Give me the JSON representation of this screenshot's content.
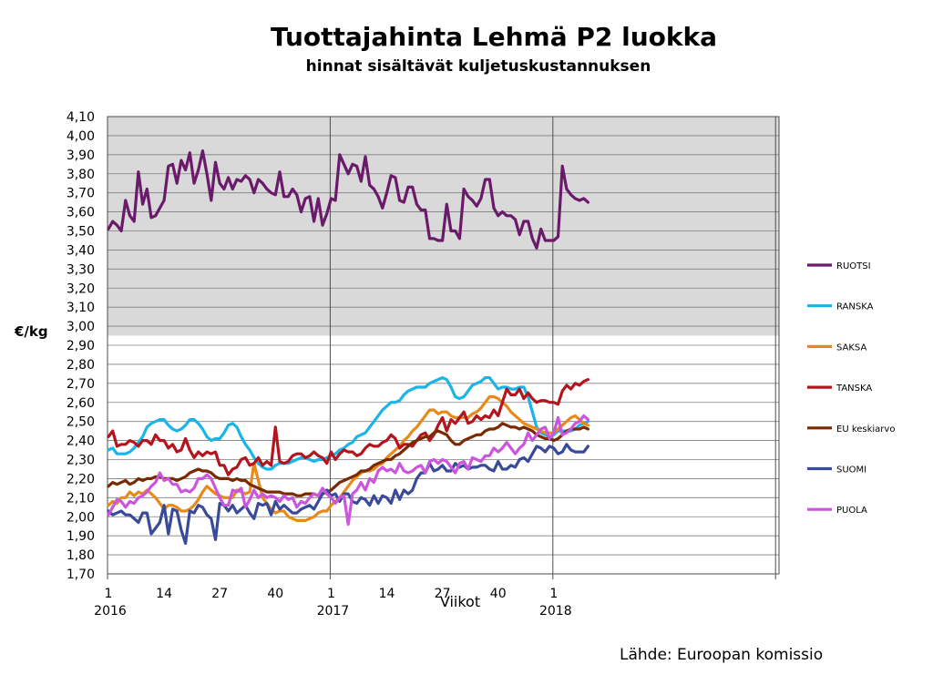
{
  "chart_data": {
    "type": "line",
    "title": "Tuottajahinta Lehmä P2 luokka",
    "subtitle": "hinnat sisältävät kuljetuskustannuksen",
    "ylabel": "€/kg",
    "xlabel": "Viikot",
    "source": "Lähde: Euroopan komissio",
    "ylim": [
      1.7,
      4.1
    ],
    "ytick_step": 0.1,
    "y_tick_labels": [
      "1,70",
      "1,80",
      "1,90",
      "2,00",
      "2,10",
      "2,20",
      "2,30",
      "2,40",
      "2,50",
      "2,60",
      "2,70",
      "2,80",
      "2,90",
      "3,00",
      "3,10",
      "3,20",
      "3,30",
      "3,40",
      "3,50",
      "3,60",
      "3,70",
      "3,80",
      "3,90",
      "4,00",
      "4,10"
    ],
    "x_week_ticks": [
      "1",
      "14",
      "27",
      "40",
      "1",
      "14",
      "27",
      "40",
      "1"
    ],
    "x_year_labels": [
      "2016",
      "2017",
      "2018"
    ],
    "grid": true,
    "legend_position": "right",
    "series": [
      {
        "name": "RUOTSI",
        "color": "#6b1a6b",
        "values": [
          3.51,
          3.55,
          3.53,
          3.5,
          3.66,
          3.58,
          3.55,
          3.81,
          3.64,
          3.72,
          3.57,
          3.58,
          3.62,
          3.66,
          3.84,
          3.85,
          3.75,
          3.87,
          3.82,
          3.91,
          3.75,
          3.82,
          3.92,
          3.8,
          3.66,
          3.86,
          3.75,
          3.72,
          3.78,
          3.72,
          3.77,
          3.76,
          3.79,
          3.77,
          3.7,
          3.77,
          3.75,
          3.72,
          3.7,
          3.69,
          3.81,
          3.68,
          3.68,
          3.72,
          3.69,
          3.6,
          3.67,
          3.68,
          3.55,
          3.67,
          3.53,
          3.59,
          3.67,
          3.66,
          3.9,
          3.85,
          3.8,
          3.85,
          3.84,
          3.76,
          3.89,
          3.74,
          3.72,
          3.68,
          3.62,
          3.7,
          3.79,
          3.78,
          3.66,
          3.65,
          3.73,
          3.73,
          3.64,
          3.61,
          3.61,
          3.46,
          3.46,
          3.45,
          3.45,
          3.64,
          3.5,
          3.5,
          3.46,
          3.72,
          3.68,
          3.66,
          3.63,
          3.67,
          3.77,
          3.77,
          3.62,
          3.58,
          3.6,
          3.58,
          3.58,
          3.56,
          3.48,
          3.55,
          3.55,
          3.46,
          3.41,
          3.51,
          3.45,
          3.45,
          3.45,
          3.47,
          3.84,
          3.72,
          3.69,
          3.67,
          3.66,
          3.67,
          3.65
        ]
      },
      {
        "name": "RANSKA",
        "color": "#1ab4e8",
        "values": [
          2.35,
          2.36,
          2.33,
          2.33,
          2.33,
          2.34,
          2.36,
          2.39,
          2.42,
          2.47,
          2.49,
          2.5,
          2.51,
          2.51,
          2.48,
          2.46,
          2.45,
          2.46,
          2.48,
          2.51,
          2.51,
          2.49,
          2.46,
          2.42,
          2.4,
          2.41,
          2.41,
          2.44,
          2.48,
          2.49,
          2.47,
          2.42,
          2.38,
          2.35,
          2.31,
          2.28,
          2.26,
          2.25,
          2.25,
          2.27,
          2.28,
          2.28,
          2.28,
          2.29,
          2.3,
          2.31,
          2.31,
          2.3,
          2.29,
          2.3,
          2.3,
          2.31,
          2.32,
          2.33,
          2.35,
          2.36,
          2.38,
          2.39,
          2.42,
          2.43,
          2.44,
          2.47,
          2.5,
          2.53,
          2.56,
          2.58,
          2.6,
          2.6,
          2.61,
          2.64,
          2.66,
          2.67,
          2.68,
          2.68,
          2.68,
          2.7,
          2.71,
          2.72,
          2.73,
          2.72,
          2.68,
          2.63,
          2.62,
          2.63,
          2.66,
          2.69,
          2.7,
          2.71,
          2.73,
          2.73,
          2.7,
          2.67,
          2.68,
          2.68,
          2.67,
          2.67,
          2.68,
          2.68,
          2.63,
          2.55,
          2.47,
          2.44,
          2.43,
          2.42,
          2.43,
          2.45,
          2.45,
          2.45,
          2.45,
          2.46,
          2.48,
          2.49,
          2.5
        ]
      },
      {
        "name": "SAKSA",
        "color": "#e88a1a",
        "values": [
          2.06,
          2.08,
          2.07,
          2.1,
          2.1,
          2.13,
          2.11,
          2.13,
          2.12,
          2.14,
          2.12,
          2.1,
          2.07,
          2.04,
          2.06,
          2.06,
          2.05,
          2.03,
          2.03,
          2.04,
          2.06,
          2.09,
          2.13,
          2.16,
          2.14,
          2.12,
          2.11,
          2.1,
          2.1,
          2.1,
          2.14,
          2.13,
          2.12,
          2.13,
          2.28,
          2.19,
          2.1,
          2.07,
          2.04,
          2.02,
          2.03,
          2.03,
          2.0,
          1.99,
          1.98,
          1.98,
          1.98,
          1.99,
          2.0,
          2.02,
          2.03,
          2.03,
          2.06,
          2.08,
          2.1,
          2.13,
          2.16,
          2.19,
          2.21,
          2.23,
          2.24,
          2.24,
          2.25,
          2.27,
          2.28,
          2.31,
          2.33,
          2.35,
          2.37,
          2.4,
          2.42,
          2.45,
          2.47,
          2.5,
          2.53,
          2.56,
          2.56,
          2.54,
          2.55,
          2.55,
          2.53,
          2.52,
          2.52,
          2.52,
          2.52,
          2.54,
          2.55,
          2.57,
          2.6,
          2.63,
          2.63,
          2.62,
          2.6,
          2.58,
          2.55,
          2.53,
          2.51,
          2.49,
          2.48,
          2.47,
          2.46,
          2.45,
          2.44,
          2.44,
          2.44,
          2.46,
          2.48,
          2.5,
          2.52,
          2.53,
          2.51,
          2.49,
          2.48
        ]
      },
      {
        "name": "TANSKA",
        "color": "#b4141e",
        "values": [
          2.42,
          2.45,
          2.37,
          2.38,
          2.38,
          2.4,
          2.39,
          2.37,
          2.4,
          2.4,
          2.38,
          2.43,
          2.4,
          2.4,
          2.36,
          2.38,
          2.34,
          2.35,
          2.41,
          2.35,
          2.31,
          2.34,
          2.32,
          2.34,
          2.33,
          2.34,
          2.27,
          2.27,
          2.22,
          2.25,
          2.26,
          2.3,
          2.31,
          2.27,
          2.28,
          2.31,
          2.27,
          2.29,
          2.27,
          2.47,
          2.29,
          2.28,
          2.29,
          2.32,
          2.33,
          2.33,
          2.31,
          2.32,
          2.34,
          2.32,
          2.31,
          2.28,
          2.34,
          2.3,
          2.33,
          2.35,
          2.34,
          2.34,
          2.32,
          2.33,
          2.36,
          2.38,
          2.37,
          2.37,
          2.39,
          2.4,
          2.43,
          2.41,
          2.36,
          2.38,
          2.38,
          2.37,
          2.4,
          2.43,
          2.44,
          2.4,
          2.43,
          2.48,
          2.52,
          2.45,
          2.51,
          2.49,
          2.52,
          2.55,
          2.49,
          2.5,
          2.53,
          2.51,
          2.53,
          2.52,
          2.56,
          2.53,
          2.6,
          2.67,
          2.64,
          2.64,
          2.67,
          2.62,
          2.65,
          2.62,
          2.6,
          2.61,
          2.61,
          2.6,
          2.6,
          2.59,
          2.66,
          2.69,
          2.67,
          2.7,
          2.69,
          2.71,
          2.72
        ]
      },
      {
        "name": "EU keskiarvo",
        "color": "#7a2a00",
        "values": [
          2.16,
          2.18,
          2.17,
          2.18,
          2.19,
          2.17,
          2.18,
          2.2,
          2.19,
          2.2,
          2.2,
          2.21,
          2.21,
          2.2,
          2.2,
          2.2,
          2.19,
          2.2,
          2.21,
          2.23,
          2.24,
          2.25,
          2.24,
          2.24,
          2.23,
          2.21,
          2.2,
          2.2,
          2.2,
          2.19,
          2.2,
          2.19,
          2.19,
          2.17,
          2.16,
          2.15,
          2.14,
          2.13,
          2.13,
          2.13,
          2.13,
          2.12,
          2.12,
          2.12,
          2.11,
          2.11,
          2.12,
          2.12,
          2.12,
          2.11,
          2.12,
          2.13,
          2.14,
          2.16,
          2.18,
          2.19,
          2.2,
          2.21,
          2.22,
          2.24,
          2.24,
          2.25,
          2.27,
          2.28,
          2.29,
          2.3,
          2.3,
          2.32,
          2.33,
          2.35,
          2.37,
          2.39,
          2.4,
          2.41,
          2.42,
          2.42,
          2.44,
          2.45,
          2.44,
          2.43,
          2.4,
          2.38,
          2.38,
          2.4,
          2.41,
          2.42,
          2.43,
          2.43,
          2.45,
          2.46,
          2.46,
          2.47,
          2.49,
          2.48,
          2.47,
          2.47,
          2.46,
          2.47,
          2.46,
          2.45,
          2.43,
          2.42,
          2.41,
          2.41,
          2.4,
          2.41,
          2.43,
          2.45,
          2.46,
          2.46,
          2.46,
          2.47,
          2.46
        ]
      },
      {
        "name": "SUOMI",
        "color": "#3a4a9a",
        "values": [
          2.03,
          2.01,
          2.02,
          2.03,
          2.01,
          2.01,
          1.99,
          1.97,
          2.02,
          2.02,
          1.91,
          1.94,
          1.97,
          2.06,
          1.91,
          2.04,
          2.03,
          1.93,
          1.86,
          2.03,
          2.02,
          2.06,
          2.05,
          2.01,
          1.99,
          1.88,
          2.07,
          2.06,
          2.03,
          2.06,
          2.02,
          2.04,
          2.06,
          2.02,
          1.99,
          2.07,
          2.06,
          2.07,
          2.01,
          2.08,
          2.04,
          2.06,
          2.04,
          2.02,
          2.02,
          2.04,
          2.05,
          2.06,
          2.04,
          2.08,
          2.12,
          2.14,
          2.11,
          2.12,
          2.08,
          2.12,
          2.12,
          2.08,
          2.07,
          2.1,
          2.09,
          2.06,
          2.11,
          2.07,
          2.11,
          2.1,
          2.07,
          2.14,
          2.09,
          2.14,
          2.12,
          2.14,
          2.2,
          2.23,
          2.23,
          2.28,
          2.24,
          2.25,
          2.27,
          2.24,
          2.24,
          2.28,
          2.26,
          2.27,
          2.25,
          2.26,
          2.26,
          2.27,
          2.27,
          2.25,
          2.24,
          2.29,
          2.25,
          2.25,
          2.27,
          2.26,
          2.3,
          2.31,
          2.29,
          2.33,
          2.37,
          2.36,
          2.34,
          2.37,
          2.36,
          2.33,
          2.34,
          2.38,
          2.35,
          2.34,
          2.34,
          2.34,
          2.37
        ]
      },
      {
        "name": "PUOLA",
        "color": "#cc55dd",
        "values": [
          2.01,
          2.05,
          2.09,
          2.08,
          2.05,
          2.08,
          2.07,
          2.1,
          2.11,
          2.13,
          2.16,
          2.18,
          2.23,
          2.19,
          2.2,
          2.17,
          2.17,
          2.13,
          2.14,
          2.13,
          2.15,
          2.2,
          2.2,
          2.22,
          2.2,
          2.15,
          2.1,
          2.06,
          2.06,
          2.14,
          2.13,
          2.15,
          2.05,
          2.09,
          2.14,
          2.1,
          2.12,
          2.1,
          2.11,
          2.1,
          2.08,
          2.11,
          2.09,
          2.1,
          2.05,
          2.08,
          2.07,
          2.1,
          2.12,
          2.11,
          2.15,
          2.12,
          2.1,
          2.07,
          2.1,
          2.11,
          1.96,
          2.12,
          2.14,
          2.18,
          2.14,
          2.2,
          2.18,
          2.24,
          2.26,
          2.24,
          2.25,
          2.23,
          2.28,
          2.24,
          2.23,
          2.24,
          2.26,
          2.27,
          2.23,
          2.29,
          2.3,
          2.28,
          2.3,
          2.29,
          2.26,
          2.23,
          2.28,
          2.29,
          2.25,
          2.31,
          2.3,
          2.29,
          2.32,
          2.32,
          2.36,
          2.34,
          2.36,
          2.39,
          2.36,
          2.33,
          2.36,
          2.38,
          2.44,
          2.4,
          2.43,
          2.46,
          2.47,
          2.41,
          2.44,
          2.52,
          2.43,
          2.44,
          2.46,
          2.49,
          2.5,
          2.53,
          2.51
        ]
      }
    ]
  }
}
